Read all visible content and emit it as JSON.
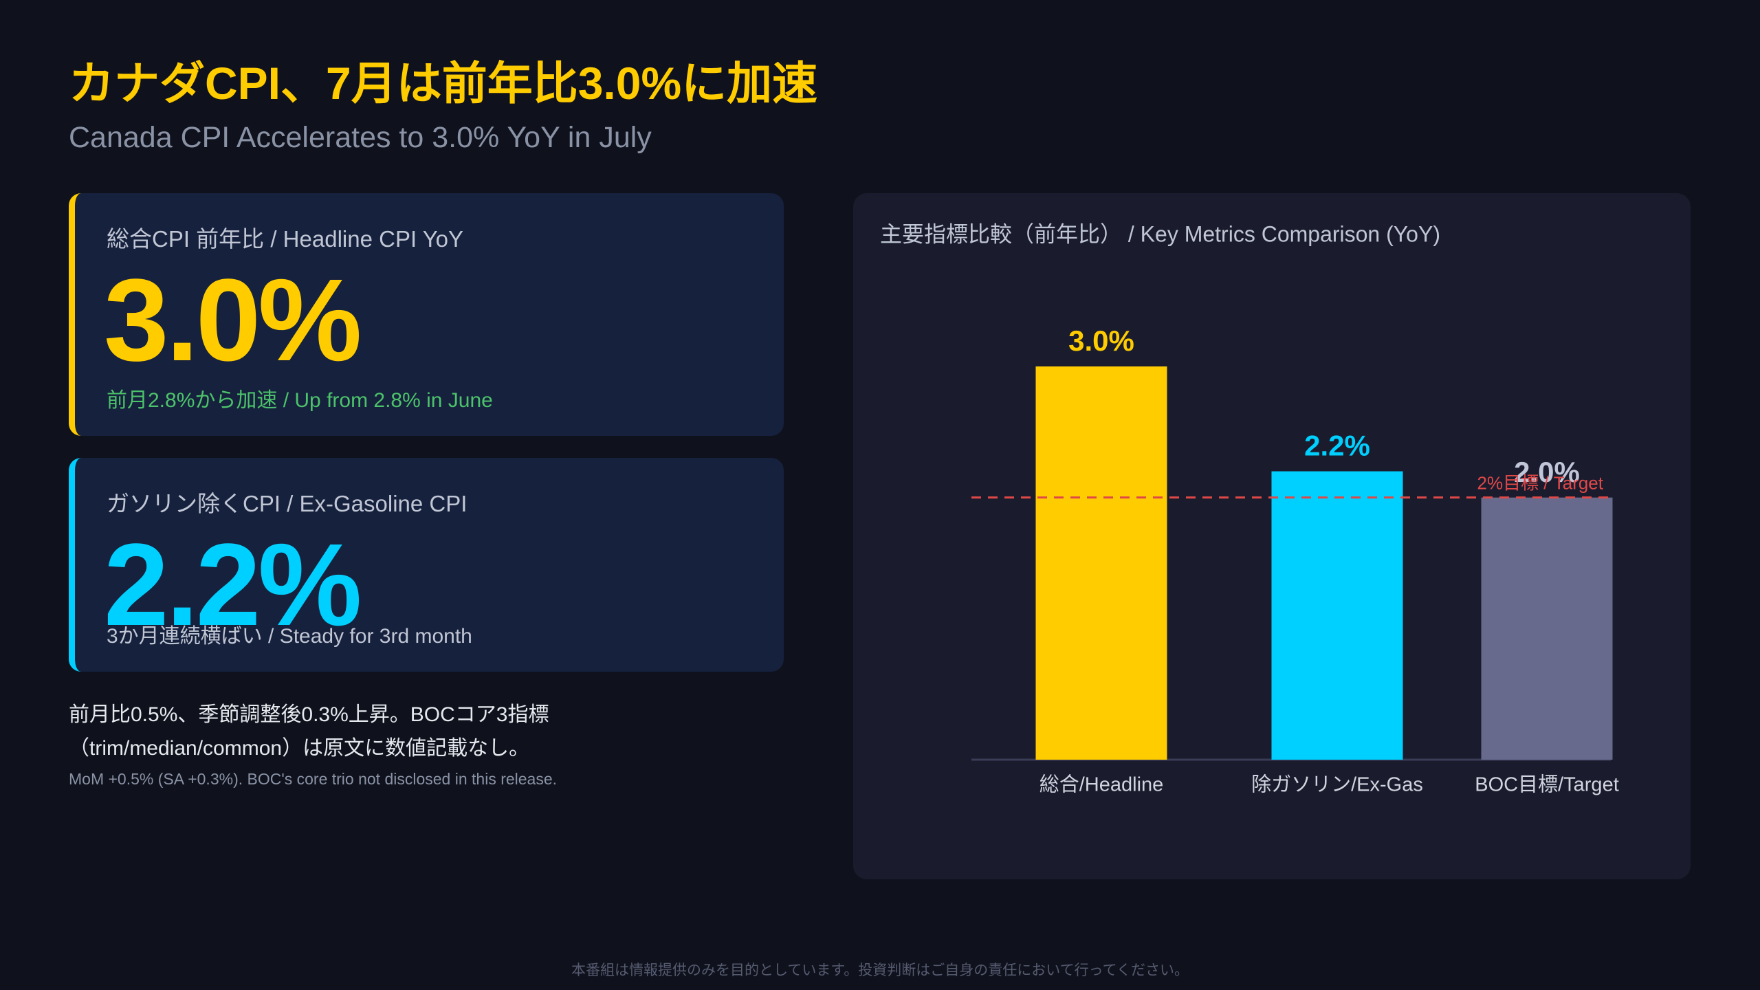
{
  "header": {
    "title": "カナダCPI、7月は前年比3.0%に加速",
    "subtitle": "Canada CPI Accelerates to 3.0% YoY in July"
  },
  "cards": [
    {
      "label": "総合CPI 前年比 / Headline CPI YoY",
      "value": "3.0%",
      "note": "前月2.8%から加速 / Up from 2.8% in June"
    },
    {
      "label": "ガソリン除くCPI / Ex-Gasoline CPI",
      "value": "2.2%",
      "note": "3か月連続横ばい / Steady for 3rd month"
    }
  ],
  "notes": {
    "lines": [
      "前月比0.5%、季節調整後0.3%上昇。BOCコア3指標",
      "（trim/median/common）は原文に数値記載なし。"
    ],
    "small": "MoM +0.5% (SA +0.3%). BOC's core trio not disclosed in this release."
  },
  "footer": "本番組は情報提供のみを目的としています。投資判断はご自身の責任において行ってください。",
  "chart_data": {
    "type": "bar",
    "title": "主要指標比較（前年比） / Key Metrics Comparison (YoY)",
    "categories": [
      "総合/Headline",
      "除ガソリン/Ex-Gas",
      "BOC目標/Target"
    ],
    "values": [
      3.0,
      2.2,
      2.0
    ],
    "value_labels": [
      "3.0%",
      "2.2%",
      "2.0%"
    ],
    "colors": [
      "#ffcc00",
      "#00d0ff",
      "#676a8c"
    ],
    "label_colors": [
      "#ffcc00",
      "#00d0ff",
      "#c0c6d8"
    ],
    "reference_line": {
      "value": 2.0,
      "label": "2%目標 / Target",
      "color": "#e04848"
    }
  }
}
